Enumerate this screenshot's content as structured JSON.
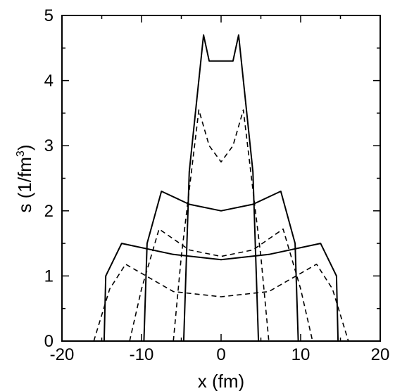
{
  "chart_data": {
    "type": "line",
    "title": "",
    "xlabel": "x (fm)",
    "ylabel_main": "s (1/fm",
    "ylabel_sup": "3",
    "ylabel_close": ")",
    "xlim": [
      -20,
      20
    ],
    "ylim": [
      0,
      5
    ],
    "xticks": [
      -20,
      -10,
      0,
      10,
      20
    ],
    "yticks": [
      0,
      1,
      2,
      3,
      4,
      5
    ],
    "xtick_labels": [
      "-20",
      "-10",
      "0",
      "10",
      "20"
    ],
    "ytick_labels": [
      "0",
      "1",
      "2",
      "3",
      "4",
      "5"
    ],
    "grid": false,
    "line_color": "#000000",
    "series": [
      {
        "style": "solid",
        "x": [
          -4.7,
          -4.0,
          -2.2,
          -1.5,
          0,
          1.5,
          2.2,
          4.0,
          4.7
        ],
        "y": [
          0,
          2.6,
          4.7,
          4.3,
          4.3,
          4.3,
          4.7,
          2.6,
          0
        ]
      },
      {
        "style": "dashed",
        "x": [
          -6.0,
          -5.0,
          -2.8,
          -1.5,
          0,
          1.5,
          2.8,
          5.0,
          6.0
        ],
        "y": [
          0,
          1.3,
          3.55,
          3.0,
          2.75,
          3.0,
          3.55,
          1.3,
          0
        ]
      },
      {
        "style": "solid",
        "x": [
          -9.7,
          -9.3,
          -7.5,
          -4.0,
          0,
          4.0,
          7.5,
          9.3,
          9.7
        ],
        "y": [
          0,
          1.5,
          2.3,
          2.1,
          2.0,
          2.1,
          2.3,
          1.5,
          0
        ]
      },
      {
        "style": "dashed",
        "x": [
          -11.5,
          -10.0,
          -7.8,
          -4.0,
          0,
          4.0,
          7.8,
          10.0,
          11.5
        ],
        "y": [
          0,
          0.8,
          1.72,
          1.4,
          1.3,
          1.4,
          1.72,
          0.8,
          0
        ]
      },
      {
        "style": "solid",
        "x": [
          -14.7,
          -14.5,
          -12.5,
          -6.0,
          0,
          6.0,
          12.5,
          14.5,
          14.7
        ],
        "y": [
          0,
          1.0,
          1.5,
          1.33,
          1.25,
          1.33,
          1.5,
          1.0,
          0
        ]
      },
      {
        "style": "dashed",
        "x": [
          -16.0,
          -14.0,
          -12.0,
          -6.0,
          0,
          6.0,
          12.0,
          14.0,
          16.0
        ],
        "y": [
          0,
          0.8,
          1.18,
          0.76,
          0.68,
          0.76,
          1.18,
          0.8,
          0
        ]
      }
    ]
  }
}
